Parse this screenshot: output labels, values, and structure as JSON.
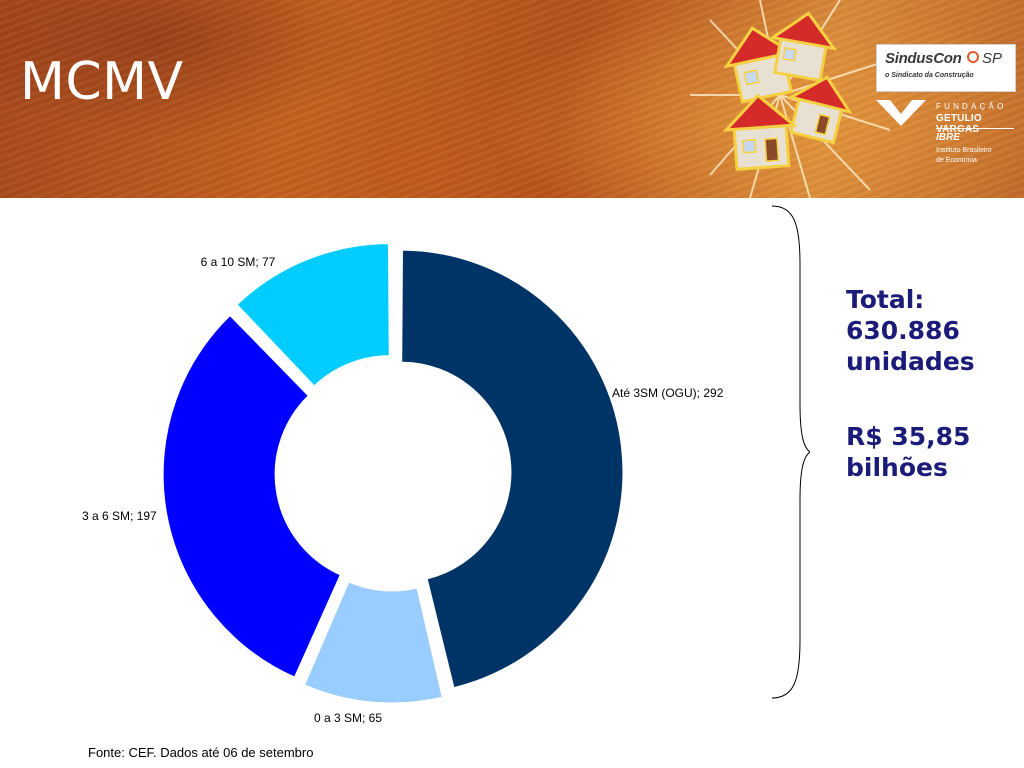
{
  "header": {
    "title": "MCMV",
    "logo_sinduscon": {
      "name": "SindusCon",
      "suffix": "SP",
      "tagline": "o Sindicato da Construção"
    },
    "logo_fgv": {
      "line1": "FUNDAÇÃO",
      "line2": "GETULIO VARGAS",
      "line3": "IBRE",
      "line4": "Instituto Brasileiro",
      "line5": "de Economia"
    }
  },
  "chart_data": {
    "type": "pie",
    "variant": "donut",
    "title": "",
    "slices": [
      {
        "label": "Até 3SM (OGU)",
        "value": 292,
        "display": "Até 3SM (OGU);  292",
        "color": "#003366"
      },
      {
        "label": "0 a 3 SM",
        "value": 65,
        "display": "0 a 3 SM;  65",
        "color": "#99ccff"
      },
      {
        "label": "3 a 6 SM",
        "value": 197,
        "display": "3 a 6 SM;  197",
        "color": "#0000ff"
      },
      {
        "label": "6 a 10 SM",
        "value": 77,
        "display": "6 a 10 SM;  77",
        "color": "#00ccff"
      }
    ]
  },
  "summary": {
    "total_label": "Total:",
    "total_value": "630.886",
    "total_unit": "unidades",
    "amount_value": "R$ 35,85",
    "amount_unit": "bilhões"
  },
  "footer": {
    "source": "Fonte: CEF. Dados até 06 de setembro"
  },
  "colors": {
    "header_base": "#b4511b",
    "summary_text": "#1b1b7a"
  }
}
